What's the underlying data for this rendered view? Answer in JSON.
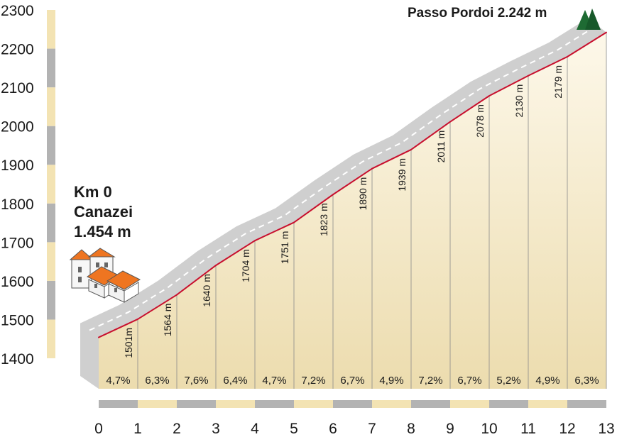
{
  "chart_data": {
    "type": "area",
    "title": "",
    "xlabel": "",
    "ylabel": "",
    "ylim": [
      1400,
      2300
    ],
    "y_ticks": [
      1400,
      1500,
      1600,
      1700,
      1800,
      1900,
      2000,
      2100,
      2200,
      2300
    ],
    "x_ticks": [
      0,
      1,
      2,
      3,
      4,
      5,
      6,
      7,
      8,
      9,
      10,
      11,
      12,
      13
    ],
    "x": [
      0,
      1,
      2,
      3,
      4,
      5,
      6,
      7,
      8,
      9,
      10,
      11,
      12,
      13
    ],
    "y": [
      1454,
      1501,
      1564,
      1640,
      1704,
      1751,
      1823,
      1890,
      1939,
      2011,
      2078,
      2130,
      2179,
      2242
    ],
    "elevation_labels": [
      "1501m",
      "1564 m",
      "1640 m",
      "1704 m",
      "1751 m",
      "1823 m",
      "1890 m",
      "1939 m",
      "2011 m",
      "2078 m",
      "2130 m",
      "2179 m"
    ],
    "gradients": [
      "4,7%",
      "6,3%",
      "7,6%",
      "6,4%",
      "4,7%",
      "7,2%",
      "6,7%",
      "4,9%",
      "7,2%",
      "6,7%",
      "5,2%",
      "4,9%",
      "6,3%"
    ],
    "start_label": [
      "Km 0",
      "Canazei",
      "1.454 m"
    ],
    "summit_label": "Passo Pordoi 2.242 m",
    "colors": {
      "fill_top": "#fdf8ea",
      "fill_bottom": "#ecdcae",
      "profile_line": "#c8102e",
      "road": "#cfcfcf",
      "road_dash": "#ffffff",
      "scale_gray": "#b3b3b3",
      "scale_beige": "#f3e3b3",
      "house_roof": "#ee7521",
      "summit_icon": "#1e6b33"
    },
    "icons": [
      "village-icon",
      "mountain-peak-icon"
    ]
  }
}
